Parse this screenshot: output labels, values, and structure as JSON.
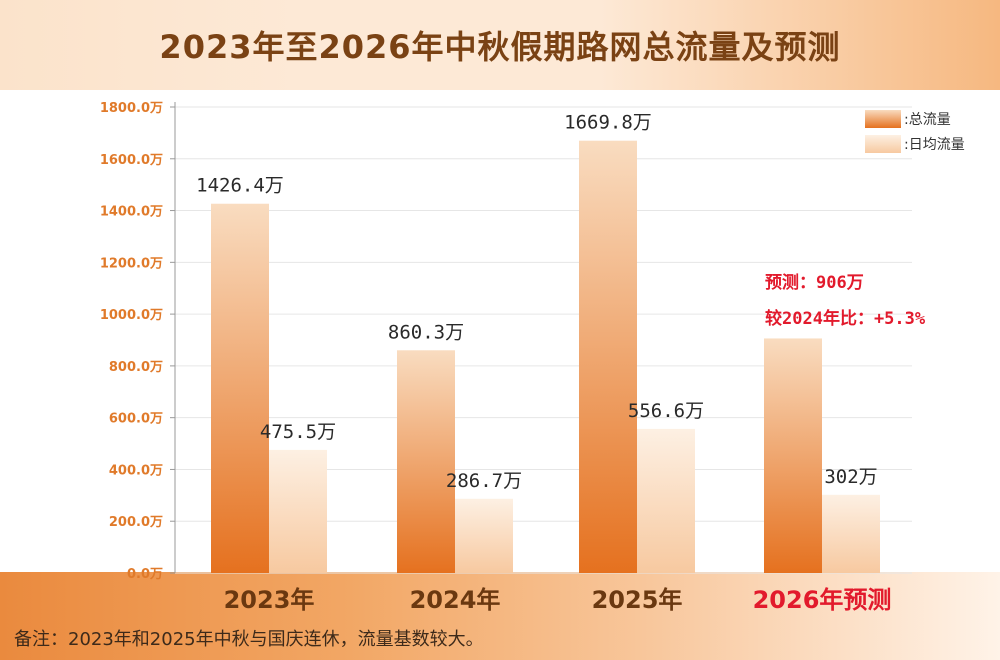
{
  "title": "2023年至2026年中秋假期路网总流量及预测",
  "note": "备注：2023年和2025年中秋与国庆连休，流量基数较大。",
  "colors": {
    "total_top": "#f9dcc0",
    "total_bottom": "#e5711f",
    "daily_top": "#fdf0e3",
    "daily_bottom": "#f7c9a0",
    "axis_tick": "#e07a2a",
    "category_normal": "#6a3810",
    "category_highlight": "#e21a2c",
    "annotation": "#e21a2c"
  },
  "chart_data": {
    "type": "bar",
    "categories": [
      "2023年",
      "2024年",
      "2025年",
      "2026年预测"
    ],
    "highlight_category_index": 3,
    "series": [
      {
        "name": ":总流量",
        "values": [
          1426.4,
          860.3,
          1669.8,
          906
        ],
        "labels": [
          "1426.4万",
          "860.3万",
          "1669.8万",
          ""
        ]
      },
      {
        "name": ":日均流量",
        "values": [
          475.5,
          286.7,
          556.6,
          302
        ],
        "labels": [
          "475.5万",
          "286.7万",
          "556.6万",
          "302万"
        ]
      }
    ],
    "yticks": [
      "0.0万",
      "200.0万",
      "400.0万",
      "600.0万",
      "800.0万",
      "1000.0万",
      "1200.0万",
      "1400.0万",
      "1600.0万",
      "1800.0万"
    ],
    "ylim": [
      0,
      1800
    ],
    "grid": true,
    "legend_position": "top-right",
    "annotations": [
      "预测：906万",
      "较2024年比：+5.3%"
    ]
  }
}
